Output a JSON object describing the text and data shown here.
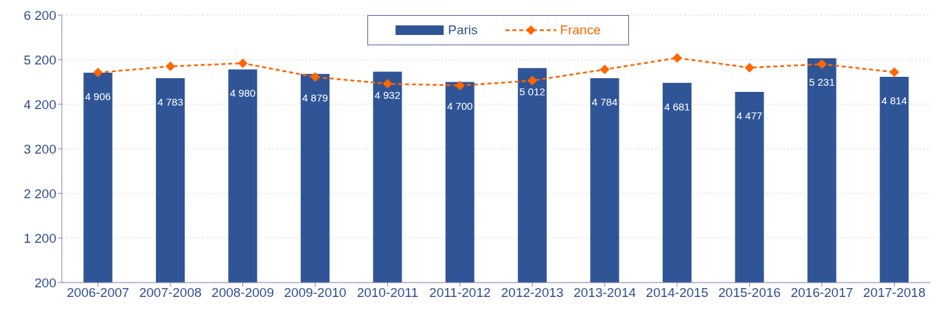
{
  "chart_data": {
    "type": "bar",
    "categories": [
      "2006-2007",
      "2007-2008",
      "2008-2009",
      "2009-2010",
      "2010-2011",
      "2011-2012",
      "2012-2013",
      "2013-2014",
      "2014-2015",
      "2015-2016",
      "2016-2017",
      "2017-2018"
    ],
    "series": [
      {
        "name": "Paris",
        "color": "#2f5597",
        "values": [
          4906,
          4783,
          4980,
          4879,
          4932,
          4700,
          5012,
          4784,
          4681,
          4477,
          5231,
          4814
        ],
        "value_labels": [
          "4 906",
          "4 783",
          "4 980",
          "4 879",
          "4 932",
          "4 700",
          "5 012",
          "4 784",
          "4 681",
          "4 477",
          "5 231",
          "4 814"
        ]
      },
      {
        "name": "France",
        "type": "line",
        "color": "#ff6600",
        "marker": "diamond",
        "line_style": "dashed",
        "values": [
          4910,
          5050,
          5120,
          4810,
          4660,
          4620,
          4730,
          4980,
          5240,
          5020,
          5100,
          4920
        ]
      }
    ],
    "ylim": [
      200,
      6200
    ],
    "yticks": [
      {
        "value": 200,
        "label": "200"
      },
      {
        "value": 1200,
        "label": "1 200"
      },
      {
        "value": 2200,
        "label": "2 200"
      },
      {
        "value": 3200,
        "label": "3 200"
      },
      {
        "value": 4200,
        "label": "4 200"
      },
      {
        "value": 5200,
        "label": "5 200"
      },
      {
        "value": 6200,
        "label": "6 200"
      }
    ],
    "grid": "y",
    "legend": "top"
  }
}
